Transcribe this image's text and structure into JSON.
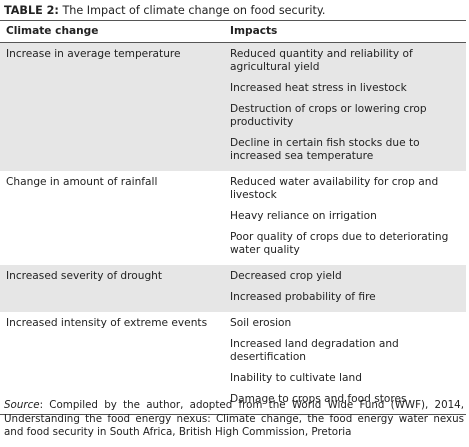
{
  "table": {
    "caption": {
      "label": "TABLE 2:",
      "text": "The Impact of climate change on food security."
    },
    "header": [
      "Climate change",
      "Impacts"
    ],
    "groups": [
      {
        "change": "Increase in average temperature",
        "impacts": [
          "Reduced quantity and reliability of agricultural yield",
          "Increased heat stress in livestock",
          "Destruction of crops or lowering crop productivity",
          "Decline in certain fish stocks due to increased sea temperature"
        ]
      },
      {
        "change": "Change in amount of rainfall",
        "impacts": [
          "Reduced water availability for crop and livestock",
          "Heavy reliance on irrigation",
          "Poor quality of crops due to deteriorating water quality"
        ]
      },
      {
        "change": "Increased severity of drought",
        "impacts": [
          "Decreased crop yield",
          "Increased probability of fire"
        ]
      },
      {
        "change": "Increased intensity of extreme events",
        "impacts": [
          "Soil erosion",
          "Increased land degradation and desertification",
          "Inability to cultivate land",
          "Damage to crops and food stores"
        ]
      }
    ]
  },
  "source": {
    "label": "Source",
    "text": ": Compiled by the author, adopted from the World Wide Fund (WWF), 2014, Understanding the food energy nexus: Climate change, the food energy water nexus and food security in South Africa, British High Commission, Pretoria"
  }
}
